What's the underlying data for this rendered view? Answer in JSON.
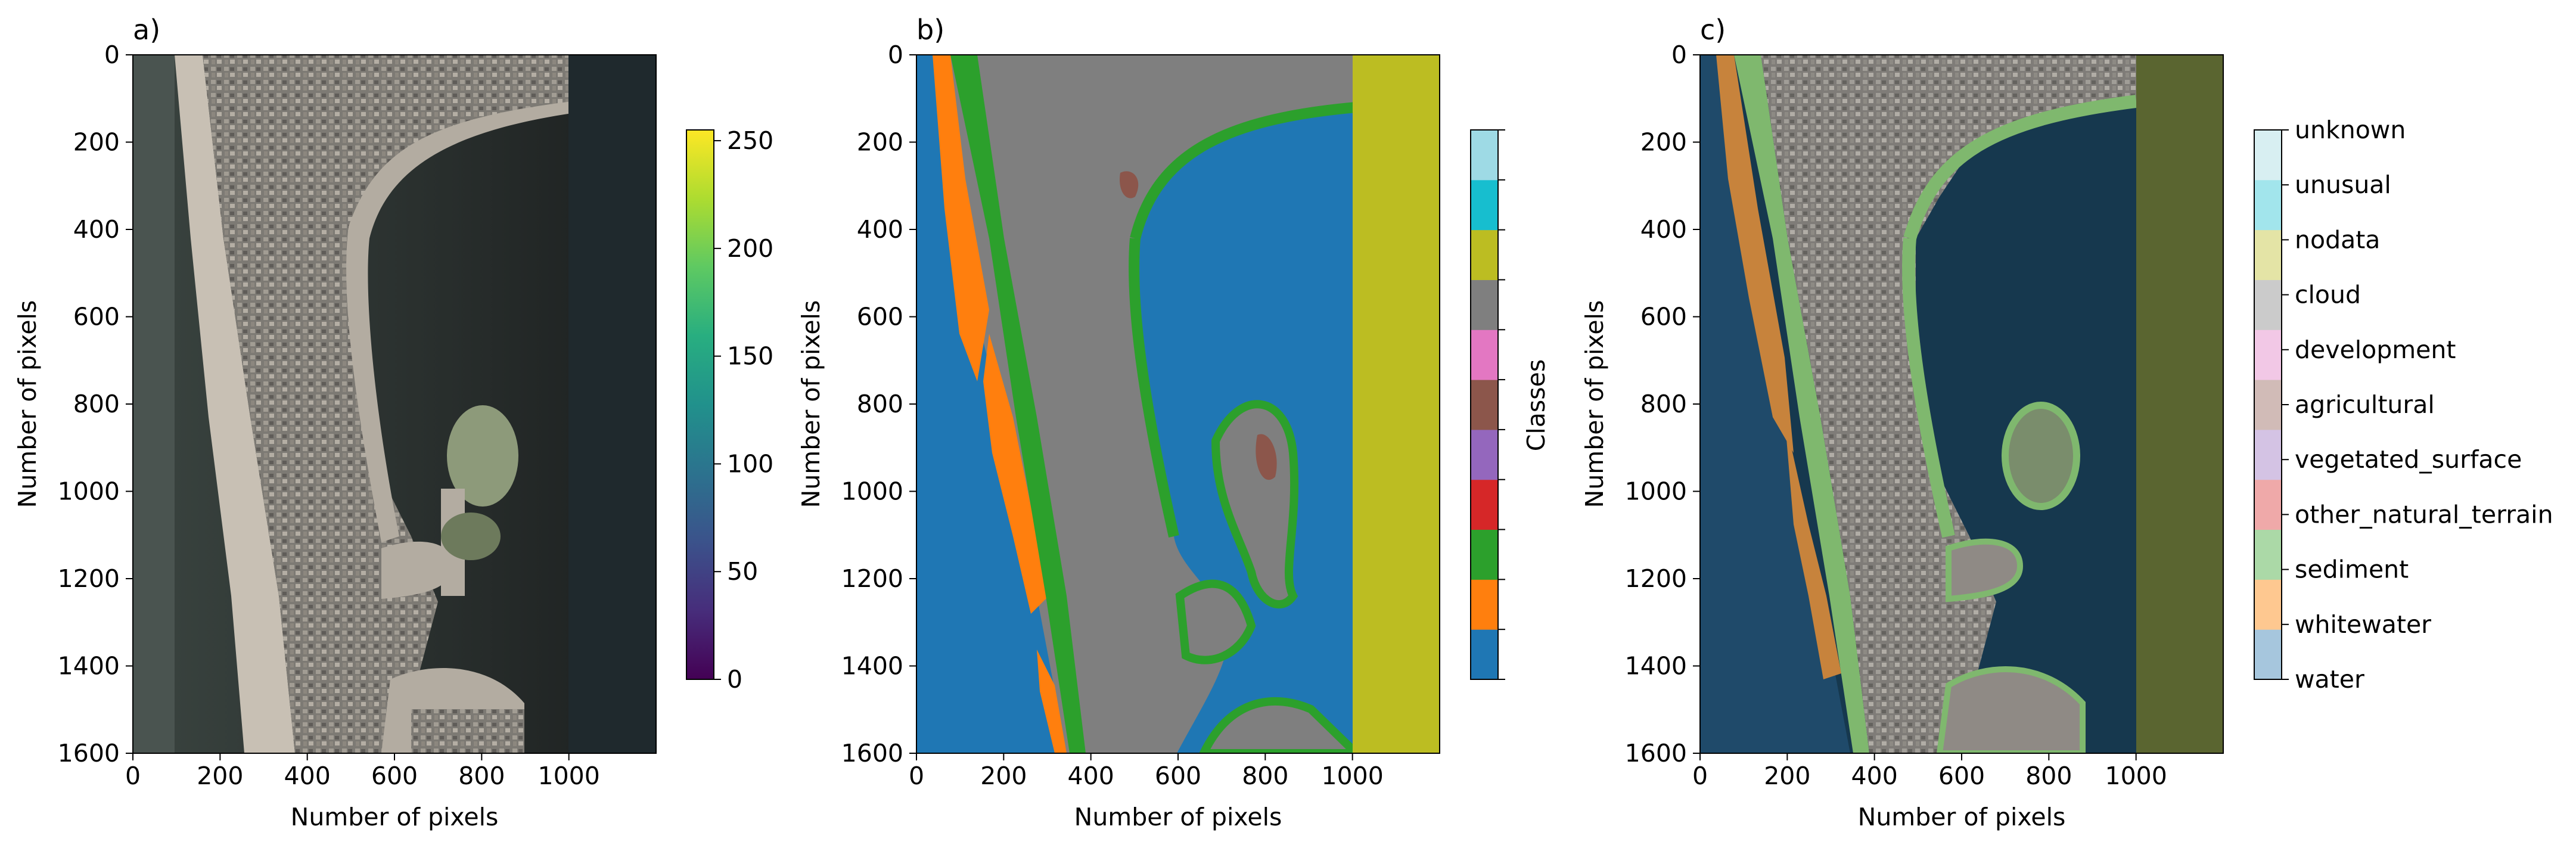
{
  "panels": [
    {
      "title": "a)",
      "xlabel": "Number of pixels",
      "ylabel": "Number of pixels",
      "xticks": [
        "0",
        "200",
        "400",
        "600",
        "800",
        "1000"
      ],
      "yticks": [
        "0",
        "200",
        "400",
        "600",
        "800",
        "1000",
        "1200",
        "1400",
        "1600"
      ]
    },
    {
      "title": "b)",
      "xlabel": "Number of pixels",
      "ylabel": "Number of pixels",
      "xticks": [
        "0",
        "200",
        "400",
        "600",
        "800",
        "1000"
      ],
      "yticks": [
        "0",
        "200",
        "400",
        "600",
        "800",
        "1000",
        "1200",
        "1400",
        "1600"
      ]
    },
    {
      "title": "c)",
      "xlabel": "Number of pixels",
      "ylabel": "Number of pixels",
      "xticks": [
        "0",
        "200",
        "400",
        "600",
        "800",
        "1000"
      ],
      "yticks": [
        "0",
        "200",
        "400",
        "600",
        "800",
        "1000",
        "1200",
        "1400",
        "1600"
      ]
    }
  ],
  "colorbar_a": {
    "colormap": "viridis",
    "range": [
      0,
      255
    ],
    "ticks": [
      "0",
      "50",
      "100",
      "150",
      "200",
      "250"
    ]
  },
  "colorbar_b": {
    "label": "Classes",
    "colors": [
      "#1f77b4",
      "#ff7f0e",
      "#2ca02c",
      "#d62728",
      "#9467bd",
      "#8c564b",
      "#e377c2",
      "#7f7f7f",
      "#bcbd22",
      "#17becf",
      "#9edae5"
    ]
  },
  "colorbar_c": {
    "colors": [
      "#a6c6dd",
      "#fec890",
      "#abd9a7",
      "#efa9a9",
      "#d4c3e4",
      "#d1bbb7",
      "#f2c8e6",
      "#cbcbcb",
      "#e4e4a6",
      "#a2e5ec",
      "#d8eff2"
    ],
    "labels": [
      "water",
      "whitewater",
      "sediment",
      "other_natural_terrain",
      "vegetated_surface",
      "agricultural",
      "development",
      "cloud",
      "nodata",
      "unusual",
      "unknown"
    ]
  },
  "chart_data": [
    {
      "type": "image",
      "title": "a)",
      "xlabel": "Number of pixels",
      "ylabel": "Number of pixels",
      "xlim": [
        0,
        1200
      ],
      "ylim": [
        1600,
        0
      ],
      "image_extent_x": [
        0,
        1000
      ],
      "nodata_columns": [
        1000,
        1200
      ],
      "colorbar": {
        "colormap": "viridis",
        "range": [
          0,
          255
        ],
        "ticks": [
          0,
          50,
          100,
          150,
          200,
          250
        ]
      }
    },
    {
      "type": "heatmap",
      "title": "b)",
      "xlabel": "Number of pixels",
      "ylabel": "Number of pixels",
      "xlim": [
        0,
        1200
      ],
      "ylim": [
        1600,
        0
      ],
      "colorbar_label": "Classes",
      "classes_present": [
        "water",
        "whitewater",
        "sediment",
        "cloud",
        "nodata"
      ],
      "class_colors": {
        "water": "#1f77b4",
        "whitewater": "#ff7f0e",
        "sediment": "#2ca02c",
        "other_natural_terrain": "#d62728",
        "vegetated_surface": "#9467bd",
        "agricultural": "#8c564b",
        "development": "#e377c2",
        "cloud": "#7f7f7f",
        "nodata": "#bcbd22",
        "unusual": "#17becf",
        "unknown": "#9edae5"
      }
    },
    {
      "type": "heatmap",
      "title": "c)",
      "xlabel": "Number of pixels",
      "ylabel": "Number of pixels",
      "xlim": [
        0,
        1200
      ],
      "ylim": [
        1600,
        0
      ],
      "overlay": "class labels over image (semi-transparent)",
      "legend": [
        "water",
        "whitewater",
        "sediment",
        "other_natural_terrain",
        "vegetated_surface",
        "agricultural",
        "development",
        "cloud",
        "nodata",
        "unusual",
        "unknown"
      ]
    }
  ]
}
